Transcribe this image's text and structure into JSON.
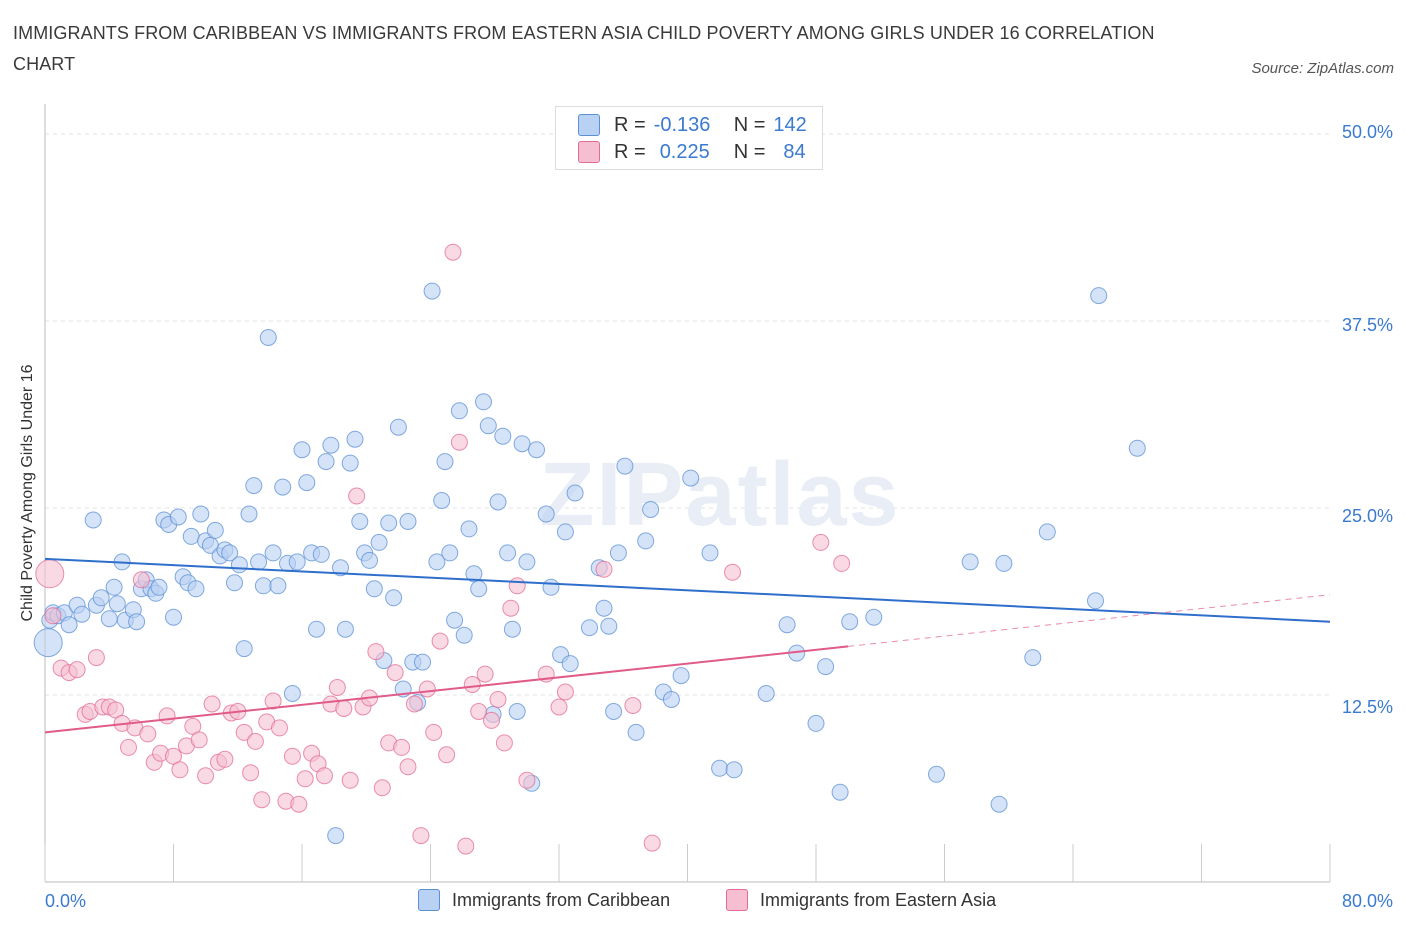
{
  "title": "IMMIGRANTS FROM CARIBBEAN VS IMMIGRANTS FROM EASTERN ASIA CHILD POVERTY AMONG GIRLS UNDER 16 CORRELATION CHART",
  "source": "Source: ZipAtlas.com",
  "watermark": "ZIPatlas",
  "legend": {
    "rows": [
      {
        "r_label": "R =",
        "r_value": "-0.136",
        "n_label": "N =",
        "n_value": "142"
      },
      {
        "r_label": "R =",
        "r_value": "0.225",
        "n_label": "N =",
        "n_value": "84"
      }
    ]
  },
  "colors": {
    "caribbean": "#5b8fd6",
    "caribbean_fill": "#b9d1f3",
    "eastern_asia": "#e36b95",
    "eastern_asia_fill": "#f5bfd1",
    "tick_text": "#3a7ad0",
    "grid": "#e3e3e3"
  },
  "chart_data": {
    "type": "scatter",
    "title": "IMMIGRANTS FROM CARIBBEAN VS IMMIGRANTS FROM EASTERN ASIA CHILD POVERTY AMONG GIRLS UNDER 16 CORRELATION CHART",
    "xlabel": "",
    "ylabel": "Child Poverty Among Girls Under 16",
    "xlim": [
      0,
      80
    ],
    "ylim": [
      0,
      50
    ],
    "x_tick_labels": [
      "0.0%",
      "80.0%"
    ],
    "y_ticks": [
      12.5,
      25.0,
      37.5,
      50.0
    ],
    "y_tick_labels": [
      "12.5%",
      "25.0%",
      "37.5%",
      "50.0%"
    ],
    "grid": true,
    "legend_position": "top-center",
    "series": [
      {
        "name": "Immigrants from Caribbean",
        "R": -0.136,
        "N": 142,
        "trend": {
          "x": [
            0,
            80
          ],
          "y": [
            21.6,
            17.4
          ],
          "solid_until": 80
        },
        "points": [
          [
            0.2,
            16.0
          ],
          [
            0.3,
            17.5
          ],
          [
            0.5,
            18.0
          ],
          [
            0.8,
            17.8
          ],
          [
            1.2,
            18.0
          ],
          [
            1.5,
            17.2
          ],
          [
            2.0,
            18.5
          ],
          [
            2.3,
            17.9
          ],
          [
            3.0,
            24.2
          ],
          [
            3.2,
            18.5
          ],
          [
            3.5,
            19.0
          ],
          [
            4.0,
            17.6
          ],
          [
            4.3,
            19.7
          ],
          [
            4.5,
            18.6
          ],
          [
            4.8,
            21.4
          ],
          [
            5.0,
            17.5
          ],
          [
            5.5,
            18.2
          ],
          [
            5.7,
            17.4
          ],
          [
            6.0,
            19.6
          ],
          [
            6.3,
            20.2
          ],
          [
            6.6,
            19.6
          ],
          [
            6.9,
            19.3
          ],
          [
            7.1,
            19.7
          ],
          [
            7.4,
            24.2
          ],
          [
            7.7,
            23.9
          ],
          [
            8.0,
            17.7
          ],
          [
            8.3,
            24.4
          ],
          [
            8.6,
            20.4
          ],
          [
            8.9,
            20.0
          ],
          [
            9.1,
            23.1
          ],
          [
            9.4,
            19.6
          ],
          [
            9.7,
            24.6
          ],
          [
            10.0,
            22.8
          ],
          [
            10.3,
            22.5
          ],
          [
            10.6,
            23.5
          ],
          [
            10.9,
            21.8
          ],
          [
            11.2,
            22.2
          ],
          [
            11.5,
            22.0
          ],
          [
            11.8,
            20.0
          ],
          [
            12.1,
            21.2
          ],
          [
            12.4,
            15.6
          ],
          [
            12.7,
            24.6
          ],
          [
            13.0,
            26.5
          ],
          [
            13.3,
            21.4
          ],
          [
            13.6,
            19.8
          ],
          [
            13.9,
            36.4
          ],
          [
            14.2,
            22.0
          ],
          [
            14.5,
            19.8
          ],
          [
            14.8,
            26.4
          ],
          [
            15.1,
            21.3
          ],
          [
            15.4,
            12.6
          ],
          [
            15.7,
            21.4
          ],
          [
            16.0,
            28.9
          ],
          [
            16.3,
            26.7
          ],
          [
            16.6,
            22.0
          ],
          [
            16.9,
            16.9
          ],
          [
            17.2,
            21.9
          ],
          [
            17.5,
            28.1
          ],
          [
            17.8,
            29.2
          ],
          [
            18.1,
            3.1
          ],
          [
            18.4,
            21.0
          ],
          [
            18.7,
            16.9
          ],
          [
            19.0,
            28.0
          ],
          [
            19.3,
            29.6
          ],
          [
            19.6,
            24.1
          ],
          [
            19.9,
            22.0
          ],
          [
            20.2,
            21.5
          ],
          [
            20.5,
            19.6
          ],
          [
            20.8,
            22.7
          ],
          [
            21.1,
            14.8
          ],
          [
            21.4,
            24.0
          ],
          [
            21.7,
            19.0
          ],
          [
            22.0,
            30.4
          ],
          [
            22.3,
            12.9
          ],
          [
            22.6,
            24.1
          ],
          [
            22.9,
            14.7
          ],
          [
            23.2,
            12.0
          ],
          [
            23.5,
            14.7
          ],
          [
            24.1,
            39.5
          ],
          [
            24.4,
            21.4
          ],
          [
            24.7,
            25.5
          ],
          [
            24.9,
            28.1
          ],
          [
            25.2,
            22.0
          ],
          [
            25.5,
            17.5
          ],
          [
            25.8,
            31.5
          ],
          [
            26.1,
            16.5
          ],
          [
            26.4,
            23.6
          ],
          [
            26.7,
            20.6
          ],
          [
            27.0,
            19.6
          ],
          [
            27.3,
            32.1
          ],
          [
            27.6,
            30.5
          ],
          [
            27.9,
            11.2
          ],
          [
            28.2,
            25.4
          ],
          [
            28.5,
            29.8
          ],
          [
            28.8,
            22.0
          ],
          [
            29.1,
            16.9
          ],
          [
            29.4,
            11.4
          ],
          [
            29.7,
            29.3
          ],
          [
            30.0,
            21.4
          ],
          [
            30.3,
            6.6
          ],
          [
            30.6,
            28.9
          ],
          [
            31.2,
            24.6
          ],
          [
            31.5,
            19.7
          ],
          [
            32.1,
            15.2
          ],
          [
            32.4,
            23.4
          ],
          [
            32.7,
            14.6
          ],
          [
            33.0,
            26.0
          ],
          [
            33.9,
            17.0
          ],
          [
            34.5,
            21.0
          ],
          [
            34.8,
            18.3
          ],
          [
            35.1,
            17.1
          ],
          [
            35.4,
            11.4
          ],
          [
            35.7,
            22.0
          ],
          [
            36.1,
            27.8
          ],
          [
            36.8,
            10.0
          ],
          [
            37.4,
            22.8
          ],
          [
            37.7,
            24.9
          ],
          [
            38.5,
            12.7
          ],
          [
            39.0,
            12.2
          ],
          [
            39.6,
            13.8
          ],
          [
            40.2,
            27.0
          ],
          [
            41.4,
            22.0
          ],
          [
            42.0,
            7.6
          ],
          [
            42.9,
            7.5
          ],
          [
            44.9,
            12.6
          ],
          [
            46.2,
            17.2
          ],
          [
            46.8,
            15.3
          ],
          [
            48.0,
            10.6
          ],
          [
            48.6,
            14.4
          ],
          [
            49.5,
            6.0
          ],
          [
            50.1,
            17.4
          ],
          [
            51.6,
            17.7
          ],
          [
            55.5,
            7.2
          ],
          [
            57.6,
            21.4
          ],
          [
            59.4,
            5.2
          ],
          [
            59.7,
            21.3
          ],
          [
            61.5,
            15.0
          ],
          [
            62.4,
            23.4
          ],
          [
            65.4,
            18.8
          ],
          [
            65.6,
            39.2
          ],
          [
            68.0,
            29.0
          ]
        ]
      },
      {
        "name": "Immigrants from Eastern Asia",
        "R": 0.225,
        "N": 84,
        "trend": {
          "x": [
            0,
            80
          ],
          "y": [
            10.0,
            19.2
          ],
          "solid_until": 50
        },
        "points": [
          [
            0.3,
            20.6
          ],
          [
            0.5,
            17.8
          ],
          [
            1.0,
            14.3
          ],
          [
            1.5,
            14.0
          ],
          [
            2.0,
            14.2
          ],
          [
            2.5,
            11.2
          ],
          [
            2.8,
            11.4
          ],
          [
            3.2,
            15.0
          ],
          [
            3.6,
            11.7
          ],
          [
            4.0,
            11.7
          ],
          [
            4.4,
            11.5
          ],
          [
            4.8,
            10.6
          ],
          [
            5.2,
            9.0
          ],
          [
            5.6,
            10.3
          ],
          [
            6.0,
            20.2
          ],
          [
            6.4,
            9.9
          ],
          [
            6.8,
            8.0
          ],
          [
            7.2,
            8.6
          ],
          [
            7.6,
            11.1
          ],
          [
            8.0,
            8.4
          ],
          [
            8.4,
            7.5
          ],
          [
            8.8,
            9.1
          ],
          [
            9.2,
            10.4
          ],
          [
            9.6,
            9.5
          ],
          [
            10.0,
            7.1
          ],
          [
            10.4,
            11.9
          ],
          [
            10.8,
            8.0
          ],
          [
            11.2,
            8.2
          ],
          [
            11.6,
            11.3
          ],
          [
            12.0,
            11.4
          ],
          [
            12.4,
            10.0
          ],
          [
            12.8,
            7.3
          ],
          [
            13.1,
            9.4
          ],
          [
            13.5,
            5.5
          ],
          [
            13.8,
            10.7
          ],
          [
            14.2,
            12.1
          ],
          [
            14.6,
            10.3
          ],
          [
            15.0,
            5.4
          ],
          [
            15.4,
            8.4
          ],
          [
            15.8,
            5.2
          ],
          [
            16.2,
            6.9
          ],
          [
            16.6,
            8.6
          ],
          [
            17.0,
            7.9
          ],
          [
            17.4,
            7.1
          ],
          [
            17.8,
            11.9
          ],
          [
            18.2,
            13.0
          ],
          [
            18.6,
            11.6
          ],
          [
            19.0,
            6.8
          ],
          [
            19.4,
            25.8
          ],
          [
            19.8,
            11.7
          ],
          [
            20.2,
            12.3
          ],
          [
            20.6,
            15.4
          ],
          [
            21.0,
            6.3
          ],
          [
            21.4,
            9.3
          ],
          [
            21.8,
            14.0
          ],
          [
            22.2,
            9.0
          ],
          [
            22.6,
            7.7
          ],
          [
            23.0,
            11.9
          ],
          [
            23.4,
            3.1
          ],
          [
            23.8,
            12.9
          ],
          [
            24.2,
            10.0
          ],
          [
            24.6,
            16.1
          ],
          [
            25.0,
            8.5
          ],
          [
            25.4,
            42.1
          ],
          [
            25.8,
            29.4
          ],
          [
            26.2,
            2.4
          ],
          [
            26.6,
            13.2
          ],
          [
            27.0,
            11.4
          ],
          [
            27.4,
            13.9
          ],
          [
            27.8,
            10.8
          ],
          [
            28.2,
            12.2
          ],
          [
            28.6,
            9.3
          ],
          [
            29.0,
            18.3
          ],
          [
            29.4,
            19.8
          ],
          [
            30.0,
            6.8
          ],
          [
            31.2,
            13.9
          ],
          [
            32.0,
            11.7
          ],
          [
            32.4,
            12.7
          ],
          [
            34.8,
            20.9
          ],
          [
            36.6,
            11.8
          ],
          [
            37.8,
            2.6
          ],
          [
            42.8,
            20.7
          ],
          [
            48.3,
            22.7
          ],
          [
            49.6,
            21.3
          ]
        ]
      }
    ]
  },
  "bottom_legend": {
    "caribbean": "Immigrants from Caribbean",
    "eastern_asia": "Immigrants from Eastern Asia"
  }
}
